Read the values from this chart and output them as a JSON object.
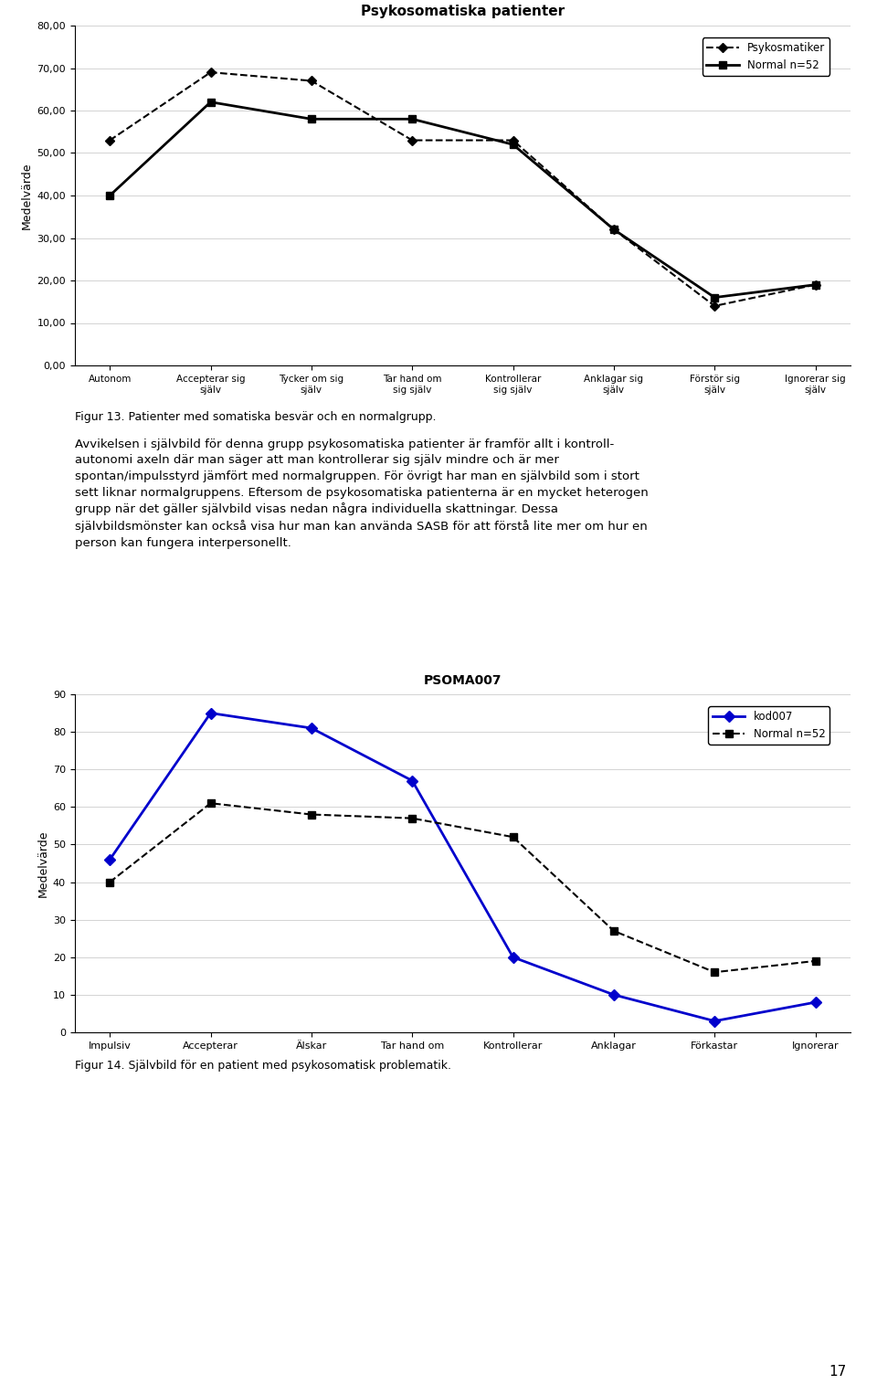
{
  "chart1": {
    "title": "Psykosomatiska patienter",
    "ylabel": "Medelvärde",
    "ylim": [
      0,
      80
    ],
    "yticks": [
      0,
      10,
      20,
      30,
      40,
      50,
      60,
      70,
      80
    ],
    "ytick_labels": [
      "0,00",
      "10,00",
      "20,00",
      "30,00",
      "40,00",
      "50,00",
      "60,00",
      "70,00",
      "80,00"
    ],
    "categories": [
      "Autonom",
      "Accepterar sig\nsjälv",
      "Tycker om sig\nsjälv",
      "Tar hand om\nsig själv",
      "Kontrollerar\nsig själv",
      "Anklagar sig\nsjälv",
      "Förstör sig\nsjälv",
      "Ignorerar sig\nsjälv"
    ],
    "series": [
      {
        "name": "Psykosmatiker",
        "values": [
          53,
          69,
          67,
          53,
          53,
          32,
          14,
          19
        ],
        "color": "#000000",
        "linestyle": "dashed",
        "marker": "D",
        "markersize": 5,
        "linewidth": 1.5
      },
      {
        "name": "Normal n=52",
        "values": [
          40,
          62,
          58,
          58,
          52,
          32,
          16,
          19
        ],
        "color": "#000000",
        "linestyle": "solid",
        "marker": "s",
        "markersize": 6,
        "linewidth": 2
      }
    ]
  },
  "chart2": {
    "title": "PSOMA007",
    "ylabel": "Medelvärde",
    "ylim": [
      0,
      90
    ],
    "yticks": [
      0,
      10,
      20,
      30,
      40,
      50,
      60,
      70,
      80,
      90
    ],
    "ytick_labels": [
      "0",
      "10",
      "20",
      "30",
      "40",
      "50",
      "60",
      "70",
      "80",
      "90"
    ],
    "categories": [
      "Impulsiv",
      "Accepterar",
      "Älskar",
      "Tar hand om",
      "Kontrollerar",
      "Anklagar",
      "Förkastar",
      "Ignorerar"
    ],
    "series": [
      {
        "name": "kod007",
        "values": [
          46,
          85,
          81,
          67,
          20,
          10,
          3,
          8
        ],
        "color": "#0000CC",
        "linestyle": "solid",
        "marker": "D",
        "markersize": 6,
        "linewidth": 2
      },
      {
        "name": "Normal n=52",
        "values": [
          40,
          61,
          58,
          57,
          52,
          27,
          16,
          19
        ],
        "color": "#000000",
        "linestyle": "dashed",
        "marker": "s",
        "markersize": 6,
        "linewidth": 1.5
      }
    ]
  },
  "fig13_caption": "Figur 13. Patienter med somatiska besvär och en normalgrupp.",
  "main_text": "Avvikelsen i självbild för denna grupp psykosomatiska patienter är framför allt i kontroll-\nautonomi axeln där man säger att man kontrollerar sig själv mindre och är mer\nspontan/impulsstyrd jämfört med normalgruppen. För övrigt har man en självbild som i stort\nsett liknar normalgruppens. Eftersom de psykosomatiska patienterna är en mycket heterogen\ngrupp när det gäller självbild visas nedan några individuella skattningar. Dessa\nsjälvbildsmönster kan också visa hur man kan använda SASB för att förstå lite mer om hur en\nperson kan fungera interpersonellt.",
  "fig14_caption": "Figur 14. Självbild för en patient med psykosomatisk problematik.",
  "page_number": "17"
}
